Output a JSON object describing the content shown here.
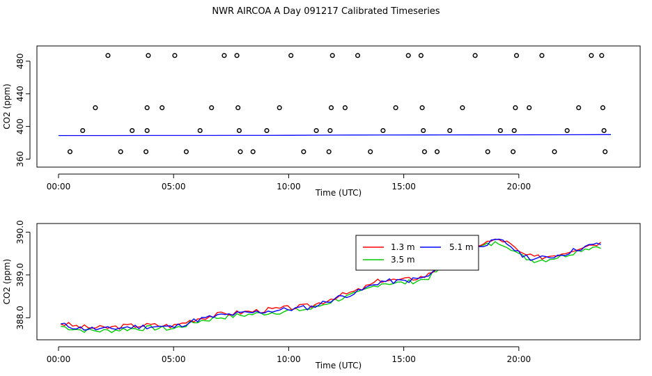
{
  "title": "NWR AIRCOA A  Day 091217  Calibrated Timeseries",
  "colors": {
    "h13": "#ff0000",
    "h35": "#00cc00",
    "h51": "#0000ff"
  },
  "chart_data": [
    {
      "type": "scatter",
      "xlabel": "Time (UTC)",
      "ylabel": "CO2 (ppm)",
      "xlim": [
        0,
        24
      ],
      "ylim": [
        357,
        491
      ],
      "x_ticks": [
        {
          "v": 0,
          "label": "00:00"
        },
        {
          "v": 5,
          "label": "05:00"
        },
        {
          "v": 10,
          "label": "10:00"
        },
        {
          "v": 15,
          "label": "15:00"
        },
        {
          "v": 20,
          "label": "20:00"
        }
      ],
      "y_ticks": [
        {
          "v": 360,
          "label": "360"
        },
        {
          "v": 400,
          "label": "400"
        },
        {
          "v": 440,
          "label": "440"
        },
        {
          "v": 480,
          "label": "480"
        }
      ],
      "points": [
        [
          0.5,
          369
        ],
        [
          1.05,
          395
        ],
        [
          1.6,
          423
        ],
        [
          2.15,
          487
        ],
        [
          2.7,
          369
        ],
        [
          3.2,
          395
        ],
        [
          3.8,
          369
        ],
        [
          3.85,
          395
        ],
        [
          3.85,
          423
        ],
        [
          3.9,
          487
        ],
        [
          4.5,
          423
        ],
        [
          5.05,
          487
        ],
        [
          5.55,
          369
        ],
        [
          6.15,
          395
        ],
        [
          6.65,
          423
        ],
        [
          7.2,
          487
        ],
        [
          7.75,
          487
        ],
        [
          7.8,
          423
        ],
        [
          7.85,
          395
        ],
        [
          7.9,
          369
        ],
        [
          8.45,
          369
        ],
        [
          9.05,
          395
        ],
        [
          9.6,
          423
        ],
        [
          10.1,
          487
        ],
        [
          10.65,
          369
        ],
        [
          11.2,
          395
        ],
        [
          11.75,
          369
        ],
        [
          11.8,
          395
        ],
        [
          11.85,
          423
        ],
        [
          11.9,
          487
        ],
        [
          12.45,
          423
        ],
        [
          13.0,
          487
        ],
        [
          13.55,
          369
        ],
        [
          14.1,
          395
        ],
        [
          14.65,
          423
        ],
        [
          15.2,
          487
        ],
        [
          15.75,
          487
        ],
        [
          15.8,
          423
        ],
        [
          15.85,
          395
        ],
        [
          15.9,
          369
        ],
        [
          16.45,
          369
        ],
        [
          17.0,
          395
        ],
        [
          17.55,
          423
        ],
        [
          18.1,
          487
        ],
        [
          18.65,
          369
        ],
        [
          19.2,
          395
        ],
        [
          19.75,
          369
        ],
        [
          19.8,
          395
        ],
        [
          19.85,
          423
        ],
        [
          19.9,
          487
        ],
        [
          20.45,
          423
        ],
        [
          21.0,
          487
        ],
        [
          21.55,
          369
        ],
        [
          22.1,
          395
        ],
        [
          22.6,
          423
        ],
        [
          23.15,
          487
        ],
        [
          23.6,
          487
        ],
        [
          23.65,
          423
        ],
        [
          23.7,
          395
        ],
        [
          23.75,
          369
        ]
      ],
      "series": [
        {
          "values": [
            [
              0,
              388.9
            ],
            [
              2,
              388.9
            ],
            [
              4,
              389.0
            ],
            [
              6,
              389.0
            ],
            [
              8,
              389.1
            ],
            [
              10,
              389.2
            ],
            [
              12,
              389.4
            ],
            [
              14,
              389.5
            ],
            [
              16,
              389.6
            ],
            [
              18,
              389.7
            ],
            [
              20,
              389.8
            ],
            [
              22,
              389.9
            ],
            [
              24,
              390.0
            ]
          ]
        }
      ]
    },
    {
      "type": "line",
      "xlabel": "Time (UTC)",
      "ylabel": "CO2 (ppm)",
      "xlim": [
        0,
        24
      ],
      "ylim": [
        387.55,
        390.12
      ],
      "x_ticks": [
        {
          "v": 0,
          "label": "00:00"
        },
        {
          "v": 5,
          "label": "05:00"
        },
        {
          "v": 10,
          "label": "10:00"
        },
        {
          "v": 15,
          "label": "15:00"
        },
        {
          "v": 20,
          "label": "20:00"
        }
      ],
      "y_ticks": [
        {
          "v": 388,
          "label": "388.0"
        },
        {
          "v": 389,
          "label": "389.0"
        },
        {
          "v": 390,
          "label": "390.0"
        }
      ],
      "legend": {
        "position": "center-right",
        "entries": [
          {
            "label": "1.3 m",
            "series": 0
          },
          {
            "label": "5.1 m",
            "series": 2
          },
          {
            "label": "3.5 m",
            "series": 1
          }
        ]
      },
      "base": [
        [
          0,
          387.85
        ],
        [
          1,
          387.75
        ],
        [
          2,
          387.73
        ],
        [
          3,
          387.78
        ],
        [
          4,
          387.8
        ],
        [
          5,
          387.78
        ],
        [
          6,
          387.95
        ],
        [
          7,
          388.05
        ],
        [
          8,
          388.1
        ],
        [
          9,
          388.15
        ],
        [
          10,
          388.2
        ],
        [
          11,
          388.25
        ],
        [
          12,
          388.45
        ],
        [
          13,
          388.6
        ],
        [
          14,
          388.85
        ],
        [
          15,
          388.85
        ],
        [
          16,
          388.95
        ],
        [
          17,
          389.35
        ],
        [
          18,
          389.65
        ],
        [
          18.7,
          389.75
        ],
        [
          19.2,
          389.8
        ],
        [
          19.6,
          389.7
        ],
        [
          20.0,
          389.5
        ],
        [
          20.6,
          389.38
        ],
        [
          21.2,
          389.4
        ],
        [
          22.0,
          389.5
        ],
        [
          22.8,
          389.65
        ],
        [
          23.5,
          389.72
        ]
      ],
      "series": [
        {
          "name": "1.3 m",
          "end": 23.6,
          "offset": 0.03,
          "seed": 3
        },
        {
          "name": "3.5 m",
          "end": 23.6,
          "offset": -0.04,
          "seed": 7
        },
        {
          "name": "5.1 m",
          "end": 23.6,
          "offset": 0.0,
          "seed": 11
        }
      ]
    }
  ]
}
